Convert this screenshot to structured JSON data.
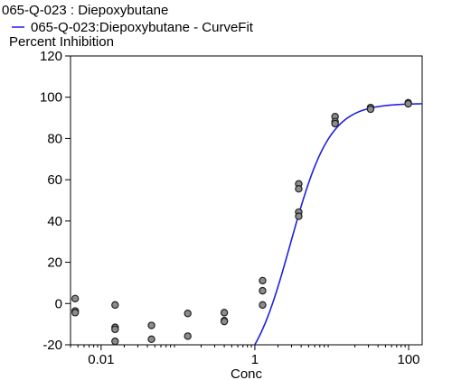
{
  "chart_data": {
    "type": "scatter",
    "title": "065-Q-023  : Diepoxybutane",
    "legend": {
      "position": "top-left",
      "entries": [
        {
          "label": "065-Q-023:Diepoxybutane - CurveFit",
          "color": "#2020e0",
          "marker": "line"
        }
      ]
    },
    "ylabel": "Percent Inhibition",
    "xlabel": "Conc",
    "x_scale": "log",
    "xlim": [
      0.004,
      150
    ],
    "ylim": [
      -20,
      120
    ],
    "x_ticks": [
      0.01,
      1,
      100
    ],
    "x_tick_labels": [
      "0.01",
      "1",
      "100"
    ],
    "y_ticks": [
      -20,
      0,
      20,
      40,
      60,
      80,
      100,
      120
    ],
    "y_tick_labels": [
      "-20",
      "0",
      "20",
      "40",
      "60",
      "80",
      "100",
      "120"
    ],
    "grid": false,
    "series": [
      {
        "kind": "points",
        "color": "#8c8c8c",
        "points": [
          {
            "x": 0.0046,
            "y": 2.4
          },
          {
            "x": 0.0046,
            "y": -3.6
          },
          {
            "x": 0.0046,
            "y": -4.4
          },
          {
            "x": 0.0152,
            "y": -0.7
          },
          {
            "x": 0.0152,
            "y": -11.5
          },
          {
            "x": 0.0152,
            "y": -12.5
          },
          {
            "x": 0.0152,
            "y": -18.3
          },
          {
            "x": 0.0452,
            "y": -10.6
          },
          {
            "x": 0.0452,
            "y": -17.3
          },
          {
            "x": 0.134,
            "y": -4.8
          },
          {
            "x": 0.134,
            "y": -15.8
          },
          {
            "x": 0.4,
            "y": -4.4
          },
          {
            "x": 0.4,
            "y": -8.3
          },
          {
            "x": 0.4,
            "y": -8.7
          },
          {
            "x": 1.26,
            "y": 11.1
          },
          {
            "x": 1.26,
            "y": 6.2
          },
          {
            "x": 1.26,
            "y": -0.7
          },
          {
            "x": 3.72,
            "y": 58.0
          },
          {
            "x": 3.72,
            "y": 55.6
          },
          {
            "x": 3.72,
            "y": 44.3
          },
          {
            "x": 3.72,
            "y": 42.3
          },
          {
            "x": 11.05,
            "y": 90.6
          },
          {
            "x": 11.05,
            "y": 88.2
          },
          {
            "x": 11.05,
            "y": 87.2
          },
          {
            "x": 32.0,
            "y": 95.0
          },
          {
            "x": 32.0,
            "y": 94.2
          },
          {
            "x": 98.8,
            "y": 97.3
          },
          {
            "x": 98.8,
            "y": 96.8
          }
        ]
      },
      {
        "kind": "curve",
        "color": "#2020e0",
        "model": "four-parameter logistic",
        "bottom": -39,
        "top": 97,
        "ec50": 2.9,
        "hill": 1.7
      }
    ]
  }
}
